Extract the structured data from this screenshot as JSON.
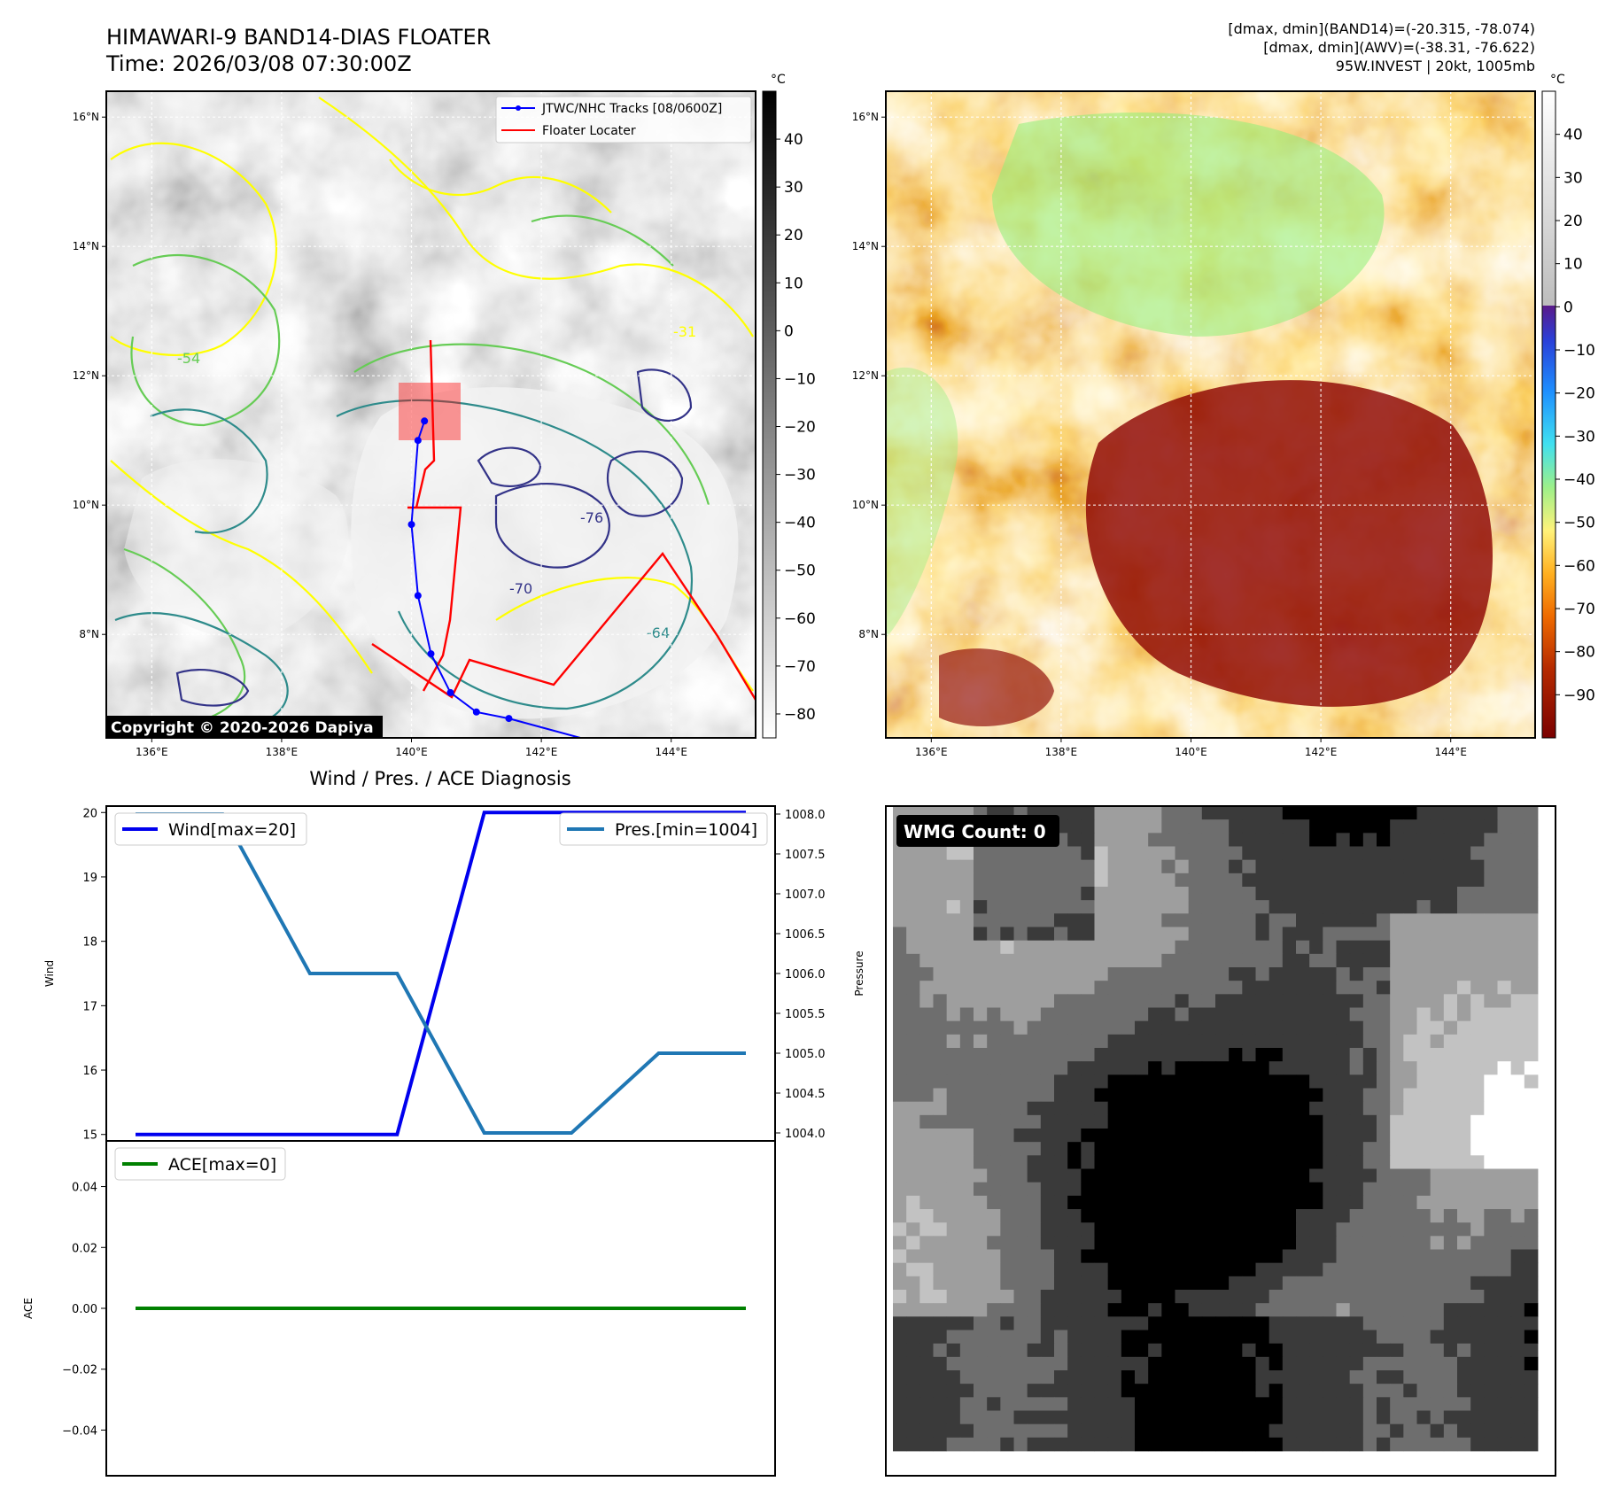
{
  "header": {
    "title_line1": "HIMAWARI-9 BAND14-DIAS FLOATER",
    "title_line2": "Time: 2026/03/08 07:30:00Z",
    "stats_line1": "[dmax, dmin](BAND14)=(-20.315, -78.074)",
    "stats_line2": "[dmax, dmin](AWV)=(-38.31, -76.622)",
    "stats_line3": "95W.INVEST | 20kt, 1005mb"
  },
  "map_axes": {
    "lon_ticks": [
      "136°E",
      "138°E",
      "140°E",
      "142°E",
      "144°E"
    ],
    "lat_ticks": [
      "16°N",
      "14°N",
      "12°N",
      "10°N",
      "8°N"
    ],
    "lon_values": [
      136,
      138,
      140,
      142,
      144
    ],
    "lat_values": [
      16,
      14,
      12,
      10,
      8
    ],
    "lon_range": [
      135.3,
      145.3
    ],
    "lat_range": [
      6.4,
      16.4
    ]
  },
  "ir_panel": {
    "copyright": "Copyright © 2020-2026 Dapiya",
    "legend_track": "JTWC/NHC Tracks [08/0600Z]",
    "legend_floater": "Floater Locater",
    "colorbar_unit": "°C",
    "colorbar_ticks": [
      "40",
      "30",
      "20",
      "10",
      "0",
      "−10",
      "−20",
      "−30",
      "−40",
      "−50",
      "−60",
      "−70",
      "−80"
    ],
    "colorbar_values": [
      40,
      30,
      20,
      10,
      0,
      -10,
      -20,
      -30,
      -40,
      -50,
      -60,
      -70,
      -80
    ],
    "colorbar_range": [
      -85,
      50
    ],
    "contour_labels": [
      "-31",
      "-54",
      "-64",
      "-76",
      "-70"
    ],
    "colors": {
      "track": "#0000ff",
      "floater": "#ff0000",
      "c31": "#ffff00",
      "c54": "#66cc55",
      "c64": "#2e8b8b",
      "c76": "#333388"
    },
    "track_points": [
      {
        "lon": 140.2,
        "lat": 11.3
      },
      {
        "lon": 140.1,
        "lat": 11.0
      },
      {
        "lon": 140.0,
        "lat": 9.7
      },
      {
        "lon": 140.1,
        "lat": 8.6
      },
      {
        "lon": 140.3,
        "lat": 7.7
      },
      {
        "lon": 140.6,
        "lat": 7.1
      },
      {
        "lon": 141.0,
        "lat": 6.8
      },
      {
        "lon": 141.5,
        "lat": 6.7
      },
      {
        "lon": 142.6,
        "lat": 6.4
      }
    ]
  },
  "awv_panel": {
    "colorbar_unit": "°C",
    "colorbar_ticks": [
      "40",
      "30",
      "20",
      "10",
      "0",
      "−10",
      "−20",
      "−30",
      "−40",
      "−50",
      "−60",
      "−70",
      "−80",
      "−90"
    ],
    "colorbar_values": [
      40,
      30,
      20,
      10,
      0,
      -10,
      -20,
      -30,
      -40,
      -50,
      -60,
      -70,
      -80,
      -90
    ],
    "colorbar_range": [
      -100,
      50
    ]
  },
  "diagnosis": {
    "title": "Wind / Pres. / ACE Diagnosis",
    "wind_ylabel": "Wind",
    "pres_ylabel": "Pressure",
    "ace_ylabel": "ACE",
    "wind_legend": "Wind[max=20]",
    "pres_legend": "Pres.[min=1004]",
    "ace_legend": "ACE[max=0]",
    "wind_ticks": [
      "20",
      "19",
      "18",
      "17",
      "16",
      "15"
    ],
    "pres_ticks": [
      "1008.0",
      "1007.5",
      "1007.0",
      "1006.5",
      "1006.0",
      "1005.5",
      "1005.0",
      "1004.5",
      "1004.0"
    ],
    "ace_ticks": [
      "0.04",
      "0.02",
      "0.00",
      "−0.02",
      "−0.04"
    ],
    "colors": {
      "wind": "#0000ee",
      "pressure": "#1f77b4",
      "ace": "#008000"
    }
  },
  "chart_data": {
    "type": "line",
    "title": "Wind / Pres. / ACE Diagnosis",
    "x_index": [
      0,
      1,
      2,
      3,
      4,
      5,
      6,
      7
    ],
    "series": [
      {
        "name": "Wind[max=20]",
        "axis": "Wind",
        "values": [
          15,
          15,
          15,
          15,
          20,
          20,
          20,
          20
        ],
        "ylim": [
          14.9,
          20.1
        ]
      },
      {
        "name": "Pres.[min=1004]",
        "axis": "Pressure",
        "values": [
          1008,
          1008,
          1006,
          1006,
          1004,
          1004,
          1005,
          1005
        ],
        "ylim": [
          1003.9,
          1008.1
        ]
      },
      {
        "name": "ACE[max=0]",
        "axis": "ACE",
        "values": [
          0,
          0,
          0,
          0,
          0,
          0,
          0,
          0
        ],
        "ylim": [
          -0.055,
          0.055
        ]
      }
    ]
  },
  "wmg_panel": {
    "label": "WMG Count: 0"
  }
}
